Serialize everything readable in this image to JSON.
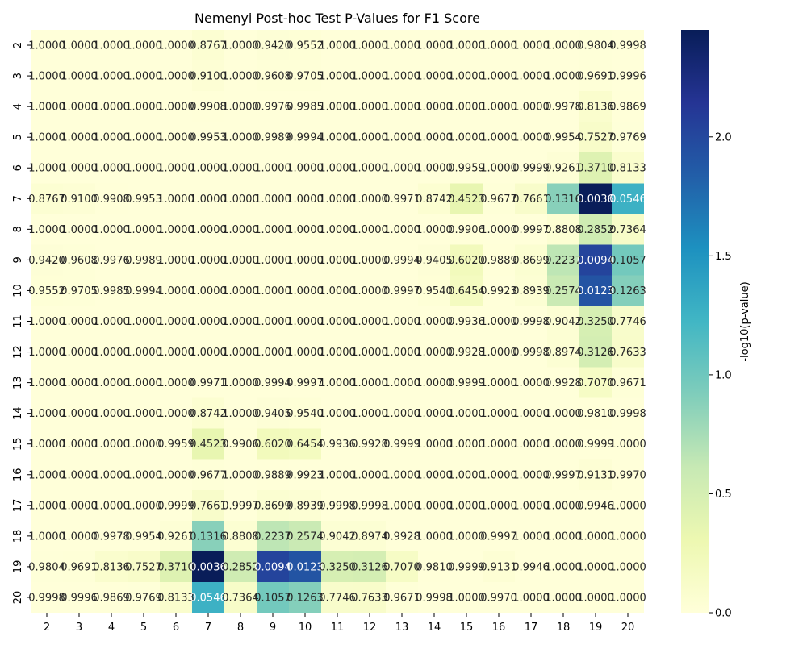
{
  "chart_data": {
    "type": "heatmap",
    "title": "Nemenyi Post-hoc Test P-Values for F1 Score",
    "x_labels": [
      "2",
      "3",
      "4",
      "5",
      "6",
      "7",
      "8",
      "9",
      "10",
      "11",
      "12",
      "13",
      "14",
      "15",
      "16",
      "17",
      "18",
      "19",
      "20"
    ],
    "y_labels": [
      "2",
      "3",
      "4",
      "5",
      "6",
      "7",
      "8",
      "9",
      "10",
      "11",
      "12",
      "13",
      "14",
      "15",
      "16",
      "17",
      "18",
      "19",
      "20"
    ],
    "values": [
      [
        1.0,
        1.0,
        1.0,
        1.0,
        1.0,
        0.8767,
        1.0,
        0.942,
        0.9552,
        1.0,
        1.0,
        1.0,
        1.0,
        1.0,
        1.0,
        1.0,
        1.0,
        0.9804,
        0.9998
      ],
      [
        1.0,
        1.0,
        1.0,
        1.0,
        1.0,
        0.91,
        1.0,
        0.9608,
        0.9705,
        1.0,
        1.0,
        1.0,
        1.0,
        1.0,
        1.0,
        1.0,
        1.0,
        0.9691,
        0.9996
      ],
      [
        1.0,
        1.0,
        1.0,
        1.0,
        1.0,
        0.9908,
        1.0,
        0.9976,
        0.9985,
        1.0,
        1.0,
        1.0,
        1.0,
        1.0,
        1.0,
        1.0,
        0.9978,
        0.8136,
        0.9869
      ],
      [
        1.0,
        1.0,
        1.0,
        1.0,
        1.0,
        0.9953,
        1.0,
        0.9989,
        0.9994,
        1.0,
        1.0,
        1.0,
        1.0,
        1.0,
        1.0,
        1.0,
        0.9954,
        0.7527,
        0.9769
      ],
      [
        1.0,
        1.0,
        1.0,
        1.0,
        1.0,
        1.0,
        1.0,
        1.0,
        1.0,
        1.0,
        1.0,
        1.0,
        1.0,
        0.9959,
        1.0,
        0.9999,
        0.9261,
        0.371,
        0.8133
      ],
      [
        0.8767,
        0.91,
        0.9908,
        0.9953,
        1.0,
        1.0,
        1.0,
        1.0,
        1.0,
        1.0,
        1.0,
        0.9971,
        0.8742,
        0.4523,
        0.9677,
        0.7661,
        0.1316,
        0.0036,
        0.0546
      ],
      [
        1.0,
        1.0,
        1.0,
        1.0,
        1.0,
        1.0,
        1.0,
        1.0,
        1.0,
        1.0,
        1.0,
        1.0,
        1.0,
        0.9906,
        1.0,
        0.9997,
        0.8808,
        0.2852,
        0.7364
      ],
      [
        0.942,
        0.9608,
        0.9976,
        0.9989,
        1.0,
        1.0,
        1.0,
        1.0,
        1.0,
        1.0,
        1.0,
        0.9994,
        0.9405,
        0.602,
        0.9889,
        0.8699,
        0.2237,
        0.0094,
        0.1057
      ],
      [
        0.9552,
        0.9705,
        0.9985,
        0.9994,
        1.0,
        1.0,
        1.0,
        1.0,
        1.0,
        1.0,
        1.0,
        0.9997,
        0.954,
        0.6454,
        0.9923,
        0.8939,
        0.2574,
        0.0123,
        0.1263
      ],
      [
        1.0,
        1.0,
        1.0,
        1.0,
        1.0,
        1.0,
        1.0,
        1.0,
        1.0,
        1.0,
        1.0,
        1.0,
        1.0,
        0.9936,
        1.0,
        0.9998,
        0.9042,
        0.325,
        0.7746
      ],
      [
        1.0,
        1.0,
        1.0,
        1.0,
        1.0,
        1.0,
        1.0,
        1.0,
        1.0,
        1.0,
        1.0,
        1.0,
        1.0,
        0.9928,
        1.0,
        0.9998,
        0.8974,
        0.3126,
        0.7633
      ],
      [
        1.0,
        1.0,
        1.0,
        1.0,
        1.0,
        0.9971,
        1.0,
        0.9994,
        0.9997,
        1.0,
        1.0,
        1.0,
        1.0,
        0.9999,
        1.0,
        1.0,
        0.9928,
        0.707,
        0.9671
      ],
      [
        1.0,
        1.0,
        1.0,
        1.0,
        1.0,
        0.8742,
        1.0,
        0.9405,
        0.954,
        1.0,
        1.0,
        1.0,
        1.0,
        1.0,
        1.0,
        1.0,
        1.0,
        0.981,
        0.9998
      ],
      [
        1.0,
        1.0,
        1.0,
        1.0,
        0.9959,
        0.4523,
        0.9906,
        0.602,
        0.6454,
        0.9936,
        0.9928,
        0.9999,
        1.0,
        1.0,
        1.0,
        1.0,
        1.0,
        0.9999,
        1.0
      ],
      [
        1.0,
        1.0,
        1.0,
        1.0,
        1.0,
        0.9677,
        1.0,
        0.9889,
        0.9923,
        1.0,
        1.0,
        1.0,
        1.0,
        1.0,
        1.0,
        1.0,
        0.9997,
        0.9131,
        0.997
      ],
      [
        1.0,
        1.0,
        1.0,
        1.0,
        0.9999,
        0.7661,
        0.9997,
        0.8699,
        0.8939,
        0.9998,
        0.9998,
        1.0,
        1.0,
        1.0,
        1.0,
        1.0,
        1.0,
        0.9946,
        1.0
      ],
      [
        1.0,
        1.0,
        0.9978,
        0.9954,
        0.9261,
        0.1316,
        0.8808,
        0.2237,
        0.2574,
        0.9042,
        0.8974,
        0.9928,
        1.0,
        1.0,
        0.9997,
        1.0,
        1.0,
        1.0,
        1.0
      ],
      [
        0.9804,
        0.9691,
        0.8136,
        0.7527,
        0.371,
        0.0036,
        0.2852,
        0.0094,
        0.0123,
        0.325,
        0.3126,
        0.707,
        0.981,
        0.9999,
        0.9131,
        0.9946,
        1.0,
        1.0,
        1.0
      ],
      [
        0.9998,
        0.9996,
        0.9869,
        0.9769,
        0.8133,
        0.0546,
        0.7364,
        0.1057,
        0.1263,
        0.7746,
        0.7633,
        0.9671,
        0.9998,
        1.0,
        0.997,
        1.0,
        1.0,
        1.0,
        1.0
      ]
    ],
    "colorbar": {
      "label": "-log10(p-value)",
      "range": [
        0,
        2.45
      ],
      "ticks": [
        0.0,
        0.5,
        1.0,
        1.5,
        2.0
      ],
      "colorscale": [
        "#ffffd9",
        "#edf8b1",
        "#c7e9b4",
        "#7fcdbb",
        "#41b6c4",
        "#1d91c0",
        "#225ea8",
        "#253494",
        "#081d58"
      ]
    }
  }
}
